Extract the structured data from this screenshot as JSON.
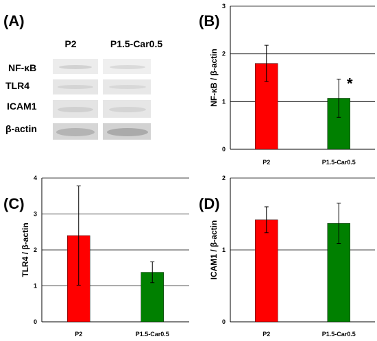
{
  "panels": {
    "A": {
      "letter": "(A)",
      "lanes": [
        "P2",
        "P1.5-Car0.5"
      ],
      "proteins": [
        "NF-κB",
        "TLR4",
        "ICAM1",
        "β-actin"
      ]
    }
  },
  "chart_data": [
    {
      "panel": "B",
      "letter": "(B)",
      "type": "bar",
      "categories": [
        "P2",
        "P1.5-Car0.5"
      ],
      "values": [
        1.8,
        1.07
      ],
      "errors": [
        0.38,
        0.4
      ],
      "colors": [
        "#ff0000",
        "#008000"
      ],
      "ylabel": "NF-κB / β-actin",
      "ylim": [
        0,
        3
      ],
      "yticks": [
        "0",
        "1",
        "2",
        "3"
      ],
      "grid": true,
      "annotations": [
        {
          "category": "P1.5-Car0.5",
          "text": "*"
        }
      ]
    },
    {
      "panel": "C",
      "letter": "(C)",
      "type": "bar",
      "categories": [
        "P2",
        "P1.5-Car0.5"
      ],
      "values": [
        2.4,
        1.38
      ],
      "errors": [
        1.38,
        0.29
      ],
      "colors": [
        "#ff0000",
        "#008000"
      ],
      "ylabel": "TLR4 / β-actin",
      "ylim": [
        0,
        4
      ],
      "yticks": [
        "0",
        "1",
        "2",
        "3",
        "4"
      ],
      "grid": true,
      "annotations": []
    },
    {
      "panel": "D",
      "letter": "(D)",
      "type": "bar",
      "categories": [
        "P2",
        "P1.5-Car0.5"
      ],
      "values": [
        1.42,
        1.37
      ],
      "errors": [
        0.18,
        0.28
      ],
      "colors": [
        "#ff0000",
        "#008000"
      ],
      "ylabel": "ICAM1 / β-actin",
      "ylim": [
        0,
        2
      ],
      "yticks": [
        "0",
        "1",
        "2"
      ],
      "grid": true,
      "annotations": []
    }
  ]
}
